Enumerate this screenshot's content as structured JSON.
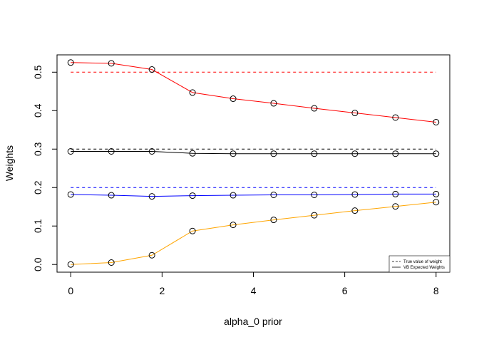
{
  "chart_data": {
    "type": "line",
    "title": "",
    "xlabel": "alpha_0 prior",
    "ylabel": "Weights",
    "xlim": [
      -0.3,
      8.3
    ],
    "ylim": [
      -0.02,
      0.545
    ],
    "x_ticks": [
      0,
      2,
      4,
      6,
      8
    ],
    "x_tick_labels": [
      "0",
      "2",
      "4",
      "6",
      "8"
    ],
    "y_ticks": [
      0.0,
      0.1,
      0.2,
      0.3,
      0.4,
      0.5
    ],
    "y_tick_labels": [
      "0.0",
      "0.1",
      "0.2",
      "0.3",
      "0.4",
      "0.5"
    ],
    "grid": false,
    "legend_position": "bottom-right",
    "legend": [
      {
        "label": "True value of weight",
        "style": "dashed",
        "color": "#000000"
      },
      {
        "label": "VB Expected Weights",
        "style": "solid",
        "color": "#000000"
      }
    ],
    "x": [
      0,
      0.889,
      1.778,
      2.667,
      3.556,
      4.444,
      5.333,
      6.222,
      7.111,
      8
    ],
    "series": [
      {
        "color": "#ff0000",
        "true_value": 0.5,
        "values": [
          0.525,
          0.523,
          0.507,
          0.447,
          0.431,
          0.419,
          0.406,
          0.394,
          0.382,
          0.37
        ]
      },
      {
        "color": "#000000",
        "true_value": 0.3,
        "values": [
          0.294,
          0.294,
          0.294,
          0.289,
          0.288,
          0.288,
          0.288,
          0.288,
          0.288,
          0.288
        ]
      },
      {
        "color": "#0000ff",
        "true_value": 0.2,
        "values": [
          0.182,
          0.18,
          0.177,
          0.179,
          0.18,
          0.181,
          0.181,
          0.182,
          0.183,
          0.183
        ]
      },
      {
        "color": "#ffa500",
        "true_value": null,
        "values": [
          0.0,
          0.005,
          0.024,
          0.087,
          0.103,
          0.116,
          0.128,
          0.14,
          0.151,
          0.162
        ]
      }
    ]
  }
}
